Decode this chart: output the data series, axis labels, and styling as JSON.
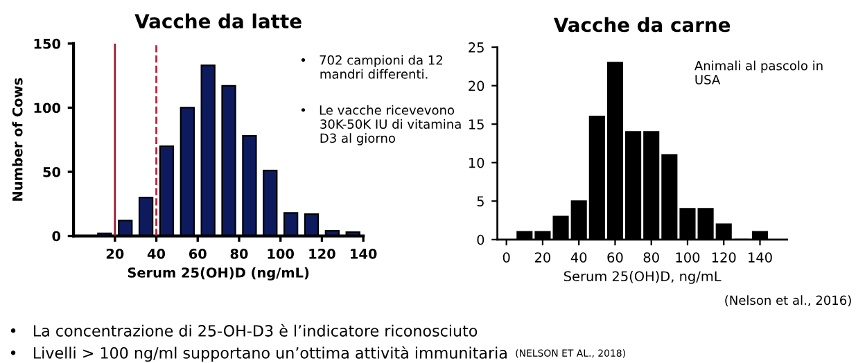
{
  "chart_data": [
    {
      "type": "bar",
      "title": "Vacche da latte",
      "xlabel": "Serum 25(OH)D (ng/mL)",
      "ylabel": "Number of Cows",
      "x": [
        15,
        25,
        35,
        45,
        55,
        65,
        75,
        85,
        95,
        105,
        115,
        125,
        135
      ],
      "values": [
        2,
        12,
        30,
        70,
        100,
        133,
        117,
        78,
        51,
        18,
        17,
        4,
        3
      ],
      "color": "#0d1b5e",
      "xlim": [
        0,
        140
      ],
      "xticks": [
        20,
        40,
        60,
        80,
        100,
        120,
        140
      ],
      "ylim": [
        0,
        150
      ],
      "yticks": [
        0,
        50,
        100,
        150
      ],
      "ref_lines": [
        {
          "axis": "x",
          "value": 20,
          "color": "#9e1b32",
          "line_style": "solid"
        },
        {
          "axis": "x",
          "value": 40,
          "color": "#c0203a",
          "line_style": "dashed"
        }
      ],
      "annotations": [
        "•   702 campioni da 12\n     mandri differenti.",
        "•   Le vacche ricevevono\n     30K-50K IU di vitamina\n     D3 al giorno"
      ],
      "grid": false
    },
    {
      "type": "bar",
      "title": "Vacche da carne",
      "xlabel": "Serum 25(OH)D, ng/mL",
      "x": [
        10,
        20,
        30,
        40,
        50,
        60,
        70,
        80,
        90,
        100,
        110,
        120,
        130,
        140
      ],
      "values": [
        1,
        1,
        3,
        5,
        16,
        23,
        14,
        14,
        11,
        4,
        4,
        2,
        0,
        1
      ],
      "color": "#000000",
      "xlim": [
        -5,
        155
      ],
      "xticks": [
        0,
        20,
        40,
        60,
        80,
        100,
        120,
        140
      ],
      "ylim": [
        0,
        25
      ],
      "yticks": [
        0,
        5,
        10,
        15,
        20,
        25
      ],
      "annotations": [
        "Animali al pascolo in\nUSA",
        "(Nelson et al., 2016)",
        "•   La concentrazione di 25-OH-D3 è l’indicatore riconosciuto",
        "•   Livelli > 100 ng/ml supportano un’ottima attività immunitaria",
        "(NELSON ET AL., 2018)"
      ],
      "grid": false
    }
  ]
}
